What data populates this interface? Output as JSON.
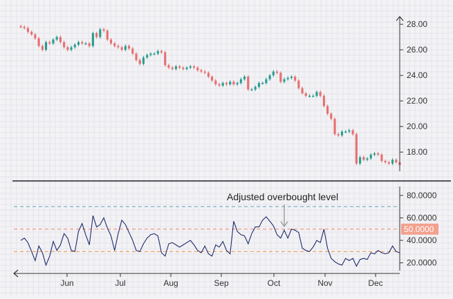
{
  "chart_data": [
    {
      "type": "candlestick",
      "panel": "price",
      "x_axis": {
        "ticks": [
          "Jun",
          "Jul",
          "Aug",
          "Sep",
          "Oct",
          "Nov",
          "Dec"
        ]
      },
      "y_axis": {
        "ticks": [
          "18.00",
          "20.00",
          "22.00",
          "24.00",
          "26.00",
          "28.00"
        ],
        "ylim": [
          16.5,
          28.6
        ],
        "position": "right"
      },
      "grid": true,
      "up_color": "#2a9d8f",
      "down_color": "#e76f6f",
      "close": [
        27.8,
        27.7,
        27.4,
        27.2,
        26.9,
        26.3,
        26.0,
        26.6,
        26.5,
        26.8,
        27.0,
        26.6,
        26.2,
        26.0,
        26.2,
        26.4,
        26.6,
        26.5,
        26.5,
        26.3,
        27.3,
        27.0,
        27.6,
        27.5,
        26.8,
        26.5,
        26.3,
        26.2,
        26.0,
        26.3,
        26.1,
        25.7,
        25.2,
        24.9,
        25.4,
        25.6,
        25.7,
        25.7,
        25.9,
        25.8,
        24.8,
        24.6,
        24.5,
        24.7,
        24.6,
        24.5,
        24.6,
        24.7,
        24.6,
        24.4,
        24.3,
        24.2,
        23.9,
        23.6,
        23.3,
        23.2,
        23.4,
        23.3,
        23.5,
        23.3,
        23.4,
        23.7,
        23.9,
        22.9,
        22.9,
        23.1,
        23.4,
        23.4,
        23.7,
        24.0,
        24.3,
        24.2,
        23.5,
        23.7,
        23.8,
        23.9,
        23.6,
        23.0,
        22.6,
        22.4,
        22.4,
        22.4,
        22.7,
        22.4,
        21.6,
        21.0,
        20.6,
        19.4,
        19.3,
        19.6,
        19.6,
        19.7,
        19.4,
        17.1,
        17.6,
        17.4,
        17.5,
        17.8,
        17.9,
        17.8,
        17.3,
        17.2,
        17.1,
        17.4,
        17.2,
        17.0
      ]
    },
    {
      "type": "line",
      "panel": "oscillator",
      "x_axis": {
        "ticks": [
          "Jun",
          "Jul",
          "Aug",
          "Sep",
          "Oct",
          "Nov",
          "Dec"
        ]
      },
      "y_axis": {
        "ticks": [
          "20.0000",
          "40.0000",
          "60.0000",
          "80.0000"
        ],
        "ylim": [
          13,
          88
        ],
        "position": "right"
      },
      "grid": true,
      "series": [
        {
          "color": "#1f2a6b",
          "values": [
            40,
            42,
            38,
            30,
            22,
            35,
            29,
            18,
            26,
            39,
            31,
            36,
            46,
            42,
            31,
            30,
            48,
            55,
            45,
            36,
            62,
            52,
            54,
            60,
            51,
            44,
            31,
            46,
            58,
            54,
            47,
            40,
            31,
            30,
            37,
            42,
            45,
            46,
            44,
            29,
            26,
            37,
            38,
            36,
            34,
            36,
            38,
            40,
            36,
            31,
            29,
            35,
            28,
            26,
            36,
            34,
            39,
            31,
            28,
            57,
            48,
            45,
            44,
            37,
            46,
            52,
            52,
            58,
            61,
            57,
            53,
            45,
            42,
            49,
            42,
            50,
            49,
            47,
            33,
            31,
            30,
            34,
            40,
            38,
            50,
            33,
            24,
            21,
            19,
            18,
            24,
            22,
            24,
            17,
            23,
            24,
            23,
            29,
            28,
            31,
            29,
            28,
            29,
            35,
            30,
            29
          ]
        }
      ],
      "reference_lines": [
        {
          "value": 70,
          "color": "#7fb3c6"
        },
        {
          "value": 50,
          "color": "#f08a73",
          "label": "50.0000",
          "label_bg": "#f3a08e"
        },
        {
          "value": 30,
          "color": "#f0a366"
        }
      ],
      "annotations": [
        {
          "text": "Adjusted overbought level",
          "arrow_x_index": 73,
          "arrow_to": 50
        }
      ]
    }
  ]
}
